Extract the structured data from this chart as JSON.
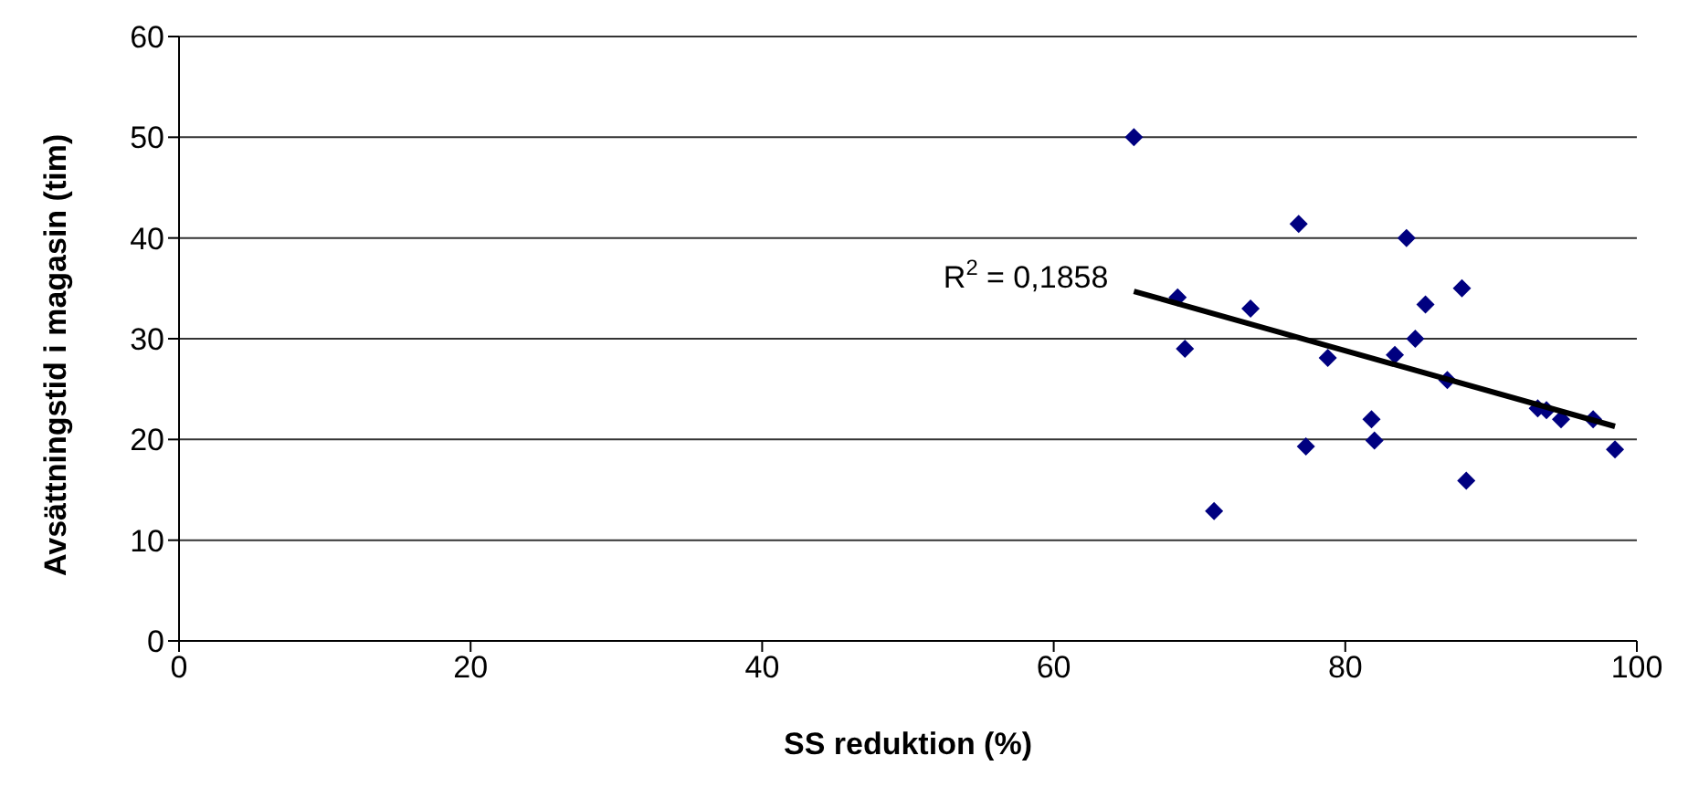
{
  "chart_data": {
    "type": "scatter",
    "xlabel": "SS reduktion (%)",
    "ylabel": "Avsättningstid i magasin (tim)",
    "xlim": [
      0,
      100
    ],
    "xticks": [
      0,
      20,
      40,
      60,
      80,
      100
    ],
    "ylim": [
      0,
      60
    ],
    "yticks": [
      0,
      10,
      20,
      30,
      40,
      50,
      60
    ],
    "grid": "y",
    "marker": "diamond",
    "annotations": [
      "R$^{2}$ = 0,1858"
    ],
    "series": [
      {
        "color": "#000080",
        "x": [
          65.5,
          76.8,
          84.2,
          68.5,
          69.0,
          73.5,
          71.0,
          77.3,
          78.8,
          81.8,
          82.0,
          83.4,
          84.8,
          85.5,
          88.0,
          87.0,
          88.3,
          93.2,
          93.8,
          94.8,
          97.0,
          98.5
        ],
        "values": [
          50,
          41.4,
          40,
          34.1,
          29,
          33,
          12.9,
          19.3,
          28.1,
          22,
          19.9,
          28.4,
          30,
          33.4,
          35,
          25.9,
          15.9,
          23.1,
          22.9,
          22,
          22,
          19
        ]
      },
      {
        "type": "line",
        "color": "#000000",
        "marker": "none",
        "x": [
          65.5,
          98.5
        ],
        "values": [
          34.7,
          21.3
        ]
      }
    ]
  }
}
